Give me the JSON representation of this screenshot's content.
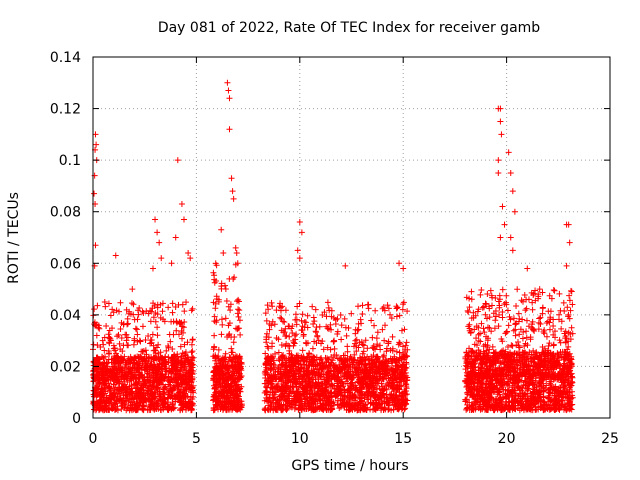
{
  "chart_data": {
    "type": "scatter",
    "title": "Day 081 of 2022, Rate Of TEC Index for receiver gamb",
    "xlabel": "GPS time / hours",
    "ylabel": "ROTI / TECUs",
    "xlim": [
      0,
      25
    ],
    "ylim": [
      0,
      0.14
    ],
    "xticks": [
      0,
      5,
      10,
      15,
      20,
      25
    ],
    "xtick_labels": [
      "0",
      "5",
      "10",
      "15",
      "20",
      "25"
    ],
    "yticks": [
      0,
      0.02,
      0.04,
      0.06,
      0.08,
      0.1,
      0.12,
      0.14
    ],
    "ytick_labels": [
      "0",
      "0.02",
      "0.04",
      "0.06",
      "0.08",
      "0.1",
      "0.12",
      "0.14"
    ],
    "grid": true,
    "marker": "+",
    "color": "#ff0000",
    "series": [
      {
        "name": "ROTI",
        "density_segments": [
          {
            "x_start": 0.0,
            "x_end": 4.85,
            "y_low": 0.003,
            "y_high": 0.045,
            "typical": 0.015,
            "count": 1500
          },
          {
            "x_start": 5.8,
            "x_end": 7.2,
            "y_low": 0.003,
            "y_high": 0.06,
            "typical": 0.015,
            "count": 500
          },
          {
            "x_start": 8.3,
            "x_end": 15.2,
            "y_low": 0.003,
            "y_high": 0.045,
            "typical": 0.015,
            "count": 2000
          },
          {
            "x_start": 18.0,
            "x_end": 23.2,
            "y_low": 0.003,
            "y_high": 0.05,
            "typical": 0.016,
            "count": 1800
          }
        ],
        "spike_points": [
          [
            0.05,
            0.087
          ],
          [
            0.08,
            0.094
          ],
          [
            0.1,
            0.104
          ],
          [
            0.12,
            0.11
          ],
          [
            0.15,
            0.106
          ],
          [
            0.18,
            0.1
          ],
          [
            0.1,
            0.083
          ],
          [
            0.12,
            0.067
          ],
          [
            0.08,
            0.059
          ],
          [
            1.1,
            0.063
          ],
          [
            1.9,
            0.05
          ],
          [
            3.0,
            0.077
          ],
          [
            3.1,
            0.072
          ],
          [
            3.2,
            0.068
          ],
          [
            3.3,
            0.062
          ],
          [
            2.9,
            0.058
          ],
          [
            3.8,
            0.06
          ],
          [
            4.0,
            0.07
          ],
          [
            4.1,
            0.1
          ],
          [
            4.3,
            0.083
          ],
          [
            4.4,
            0.077
          ],
          [
            4.6,
            0.064
          ],
          [
            4.7,
            0.062
          ],
          [
            6.2,
            0.073
          ],
          [
            6.3,
            0.064
          ],
          [
            6.5,
            0.13
          ],
          [
            6.55,
            0.127
          ],
          [
            6.6,
            0.124
          ],
          [
            6.6,
            0.112
          ],
          [
            6.7,
            0.093
          ],
          [
            6.75,
            0.088
          ],
          [
            6.8,
            0.085
          ],
          [
            6.9,
            0.066
          ],
          [
            6.95,
            0.064
          ],
          [
            7.0,
            0.06
          ],
          [
            9.9,
            0.065
          ],
          [
            10.0,
            0.062
          ],
          [
            10.0,
            0.076
          ],
          [
            10.1,
            0.072
          ],
          [
            12.2,
            0.059
          ],
          [
            14.8,
            0.06
          ],
          [
            15.0,
            0.058
          ],
          [
            18.3,
            0.049
          ],
          [
            19.6,
            0.12
          ],
          [
            19.7,
            0.12
          ],
          [
            19.7,
            0.115
          ],
          [
            19.75,
            0.11
          ],
          [
            19.6,
            0.1
          ],
          [
            19.6,
            0.095
          ],
          [
            19.8,
            0.082
          ],
          [
            19.9,
            0.075
          ],
          [
            19.7,
            0.07
          ],
          [
            20.1,
            0.103
          ],
          [
            20.2,
            0.095
          ],
          [
            20.3,
            0.088
          ],
          [
            20.4,
            0.08
          ],
          [
            20.2,
            0.07
          ],
          [
            20.3,
            0.065
          ],
          [
            21.0,
            0.058
          ],
          [
            21.6,
            0.05
          ],
          [
            22.9,
            0.075
          ],
          [
            23.0,
            0.075
          ],
          [
            23.05,
            0.068
          ],
          [
            22.9,
            0.059
          ]
        ]
      }
    ]
  }
}
